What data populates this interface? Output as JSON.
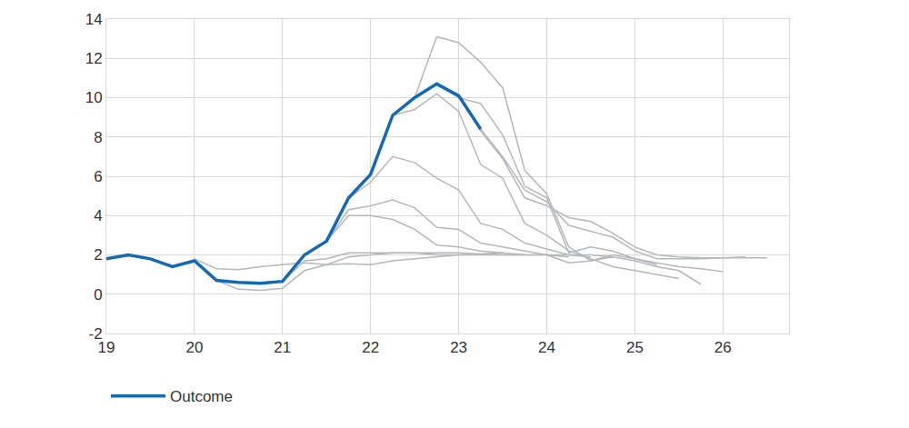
{
  "chart_data": {
    "type": "line",
    "xlim": [
      19,
      26.75
    ],
    "xticks": [
      19,
      20,
      21,
      22,
      23,
      24,
      25,
      26
    ],
    "ylim": [
      -2,
      14
    ],
    "yticks": [
      -2,
      0,
      2,
      4,
      6,
      8,
      10,
      12,
      14
    ],
    "grid": true,
    "legend": "bottom left",
    "series": [
      {
        "color": "#b4b7bc",
        "x": [
          20,
          20.25,
          20.5,
          20.75,
          21,
          21.25,
          21.5,
          21.75,
          22,
          22.25,
          22.5,
          22.75,
          23,
          23.25,
          23.5
        ],
        "values": [
          1.8,
          1.3,
          1.25,
          1.4,
          1.5,
          1.6,
          1.5,
          1.55,
          1.5,
          1.7,
          1.8,
          1.9,
          2.0,
          2.05,
          2.1
        ]
      },
      {
        "color": "#b4b7bc",
        "x": [
          20.25,
          20.5,
          20.75,
          21,
          21.25,
          21.5,
          21.75,
          22,
          22.25,
          22.5,
          22.75,
          23,
          23.25,
          23.5,
          23.75
        ],
        "values": [
          0.7,
          0.25,
          0.2,
          0.3,
          1.2,
          1.5,
          1.9,
          2.0,
          2.1,
          2.1,
          2.1,
          2.1,
          2.05,
          2.0,
          2.0
        ]
      },
      {
        "color": "#b4b7bc",
        "x": [
          21,
          21.25,
          21.5,
          21.75,
          22,
          22.25,
          22.5,
          22.75,
          23,
          23.25,
          23.5,
          23.75,
          24
        ],
        "values": [
          0.65,
          1.7,
          1.8,
          2.1,
          2.1,
          2.1,
          2.1,
          2.0,
          2.0,
          2.0,
          2.0,
          2.0,
          2.0
        ]
      },
      {
        "color": "#b4b7bc",
        "x": [
          21.5,
          21.75,
          22,
          22.25,
          22.5,
          22.75,
          23,
          23.25,
          23.5,
          23.75,
          24,
          24.25
        ],
        "values": [
          2.7,
          4.0,
          4.0,
          3.8,
          3.3,
          2.5,
          2.4,
          2.2,
          2.1,
          2.0,
          2.0,
          1.9
        ]
      },
      {
        "color": "#b4b7bc",
        "x": [
          21.5,
          21.75,
          22,
          22.25,
          22.5,
          22.75,
          23,
          23.25,
          23.5,
          23.75,
          24,
          24.25,
          24.5
        ],
        "values": [
          2.7,
          4.3,
          4.5,
          4.8,
          4.4,
          3.4,
          3.3,
          2.6,
          2.4,
          2.2,
          2.0,
          2.0,
          1.9
        ]
      },
      {
        "color": "#b4b7bc",
        "x": [
          21.75,
          22,
          22.25,
          22.5,
          22.75,
          23,
          23.25,
          23.5,
          23.75,
          24,
          24.25,
          24.5,
          24.75
        ],
        "values": [
          4.9,
          5.7,
          7.0,
          6.7,
          5.9,
          5.3,
          3.6,
          3.3,
          2.6,
          2.3,
          2.0,
          2.0,
          1.9
        ]
      },
      {
        "color": "#b4b7bc",
        "x": [
          22.25,
          22.5,
          22.75,
          23,
          23.25,
          23.5,
          23.75,
          24,
          24.25,
          24.5,
          24.75,
          25,
          25.25,
          25.5
        ],
        "values": [
          9.1,
          9.4,
          10.2,
          9.3,
          6.6,
          5.9,
          3.6,
          3.0,
          2.2,
          1.8,
          1.4,
          1.2,
          1.0,
          0.8
        ]
      },
      {
        "color": "#b4b7bc",
        "x": [
          22.5,
          22.75,
          23,
          23.25,
          23.5,
          23.75,
          24,
          24.25,
          24.5,
          24.75,
          25,
          25.25,
          25.5,
          25.75
        ],
        "values": [
          10.0,
          13.1,
          12.8,
          11.8,
          10.5,
          6.3,
          5.1,
          2.4,
          1.7,
          1.9,
          1.7,
          1.4,
          1.2,
          0.5
        ]
      },
      {
        "color": "#b4b7bc",
        "x": [
          22.75,
          23,
          23.25,
          23.5,
          23.75,
          24,
          24.25,
          24.5,
          24.75,
          25,
          25.25,
          25.5,
          25.75,
          26
        ],
        "values": [
          10.7,
          10.0,
          9.7,
          8.1,
          5.5,
          4.9,
          2.1,
          2.4,
          2.2,
          1.8,
          1.6,
          1.4,
          1.3,
          1.15
        ]
      },
      {
        "color": "#b4b7bc",
        "x": [
          23,
          23.25,
          23.5,
          23.75,
          24,
          24.25,
          24.5,
          24.75,
          25,
          25.25,
          25.5,
          25.75,
          26,
          26.25
        ],
        "values": [
          10.1,
          8.3,
          6.9,
          4.9,
          4.5,
          3.9,
          3.7,
          3.1,
          2.4,
          2.0,
          1.9,
          1.85,
          1.85,
          1.9
        ]
      },
      {
        "color": "#b4b7bc",
        "x": [
          23.25,
          23.5,
          23.75,
          24,
          24.25,
          24.5,
          24.75,
          25,
          25.25,
          25.5,
          25.75,
          26,
          26.25,
          26.5
        ],
        "values": [
          8.4,
          7.0,
          5.3,
          4.7,
          3.5,
          3.2,
          2.9,
          2.2,
          1.8,
          1.8,
          1.8,
          1.85,
          1.85,
          1.85
        ]
      },
      {
        "color": "#b4b7bc",
        "x": [
          24,
          24.25,
          24.5,
          24.75,
          25,
          25.25
        ],
        "values": [
          2.0,
          1.6,
          1.7,
          2.0,
          1.8,
          1.5
        ]
      },
      {
        "name": "Outcome",
        "color": "#1469b4",
        "x": [
          19,
          19.25,
          19.5,
          19.75,
          20,
          20.25,
          20.5,
          20.75,
          21,
          21.25,
          21.5,
          21.75,
          22,
          22.25,
          22.5,
          22.75,
          23,
          23.25
        ],
        "values": [
          1.8,
          2.0,
          1.8,
          1.4,
          1.7,
          0.7,
          0.6,
          0.55,
          0.65,
          2.0,
          2.7,
          4.9,
          6.1,
          9.1,
          10.0,
          10.7,
          10.1,
          8.4
        ]
      }
    ]
  }
}
